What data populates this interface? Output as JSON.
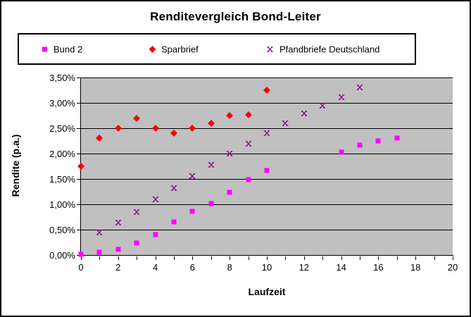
{
  "chart_data": {
    "type": "scatter",
    "title": "Renditevergleich Bond-Leiter",
    "xlabel": "Laufzeit",
    "ylabel": "Rendite (p.a.)",
    "xlim": [
      0,
      20
    ],
    "ylim": [
      0,
      3.5
    ],
    "grid": "horizontal",
    "plot_bg": "#C0C0C0",
    "grid_color": "#000000",
    "legend_position": "top",
    "y_ticks": [
      {
        "v": 0,
        "label": "0,00%"
      },
      {
        "v": 0.5,
        "label": "0,50%"
      },
      {
        "v": 1,
        "label": "1,00%"
      },
      {
        "v": 1.5,
        "label": "1,50%"
      },
      {
        "v": 2,
        "label": "2,00%"
      },
      {
        "v": 2.5,
        "label": "2,50%"
      },
      {
        "v": 3,
        "label": "3,00%"
      },
      {
        "v": 3.5,
        "label": "3,50%"
      }
    ],
    "x_minor_tick_values": [
      0,
      1,
      2,
      3,
      4,
      5,
      6,
      7,
      8,
      9,
      10,
      11,
      12,
      13,
      14,
      15,
      16,
      17,
      18,
      19,
      20
    ],
    "x_ticks": [
      {
        "v": 0,
        "label": "0"
      },
      {
        "v": 2,
        "label": "2"
      },
      {
        "v": 4,
        "label": "4"
      },
      {
        "v": 6,
        "label": "6"
      },
      {
        "v": 8,
        "label": "8"
      },
      {
        "v": 10,
        "label": "10"
      },
      {
        "v": 12,
        "label": "12"
      },
      {
        "v": 14,
        "label": "14"
      },
      {
        "v": 16,
        "label": "16"
      },
      {
        "v": 18,
        "label": "18"
      },
      {
        "v": 20,
        "label": "20"
      }
    ],
    "series": [
      {
        "name": "Bund 2",
        "marker": "square",
        "color": "#FF00FF",
        "points": [
          [
            0,
            0.01
          ],
          [
            1,
            0.05
          ],
          [
            2,
            0.11
          ],
          [
            3,
            0.23
          ],
          [
            4,
            0.4
          ],
          [
            5,
            0.65
          ],
          [
            6,
            0.86
          ],
          [
            7,
            1.02
          ],
          [
            8,
            1.24
          ],
          [
            9,
            1.49
          ],
          [
            10,
            1.67
          ],
          [
            14,
            2.03
          ],
          [
            15,
            2.16
          ],
          [
            16,
            2.25
          ],
          [
            17,
            2.31
          ]
        ]
      },
      {
        "name": "Sparbrief",
        "marker": "diamond",
        "color": "#FF0000",
        "points": [
          [
            0,
            1.75
          ],
          [
            1,
            2.3
          ],
          [
            2,
            2.5
          ],
          [
            3,
            2.7
          ],
          [
            4,
            2.5
          ],
          [
            5,
            2.4
          ],
          [
            6,
            2.5
          ],
          [
            7,
            2.6
          ],
          [
            8,
            2.75
          ],
          [
            9,
            2.77
          ],
          [
            10,
            3.25
          ]
        ]
      },
      {
        "name": "Pfandbriefe Deutschland",
        "marker": "x",
        "color": "#800080",
        "points": [
          [
            1,
            0.45
          ],
          [
            2,
            0.64
          ],
          [
            3,
            0.85
          ],
          [
            4,
            1.1
          ],
          [
            5,
            1.32
          ],
          [
            6,
            1.55
          ],
          [
            7,
            1.78
          ],
          [
            8,
            2.0
          ],
          [
            9,
            2.2
          ],
          [
            10,
            2.4
          ],
          [
            11,
            2.6
          ],
          [
            12,
            2.79
          ],
          [
            13,
            2.95
          ],
          [
            14,
            3.11
          ],
          [
            15,
            3.3
          ]
        ]
      }
    ]
  }
}
